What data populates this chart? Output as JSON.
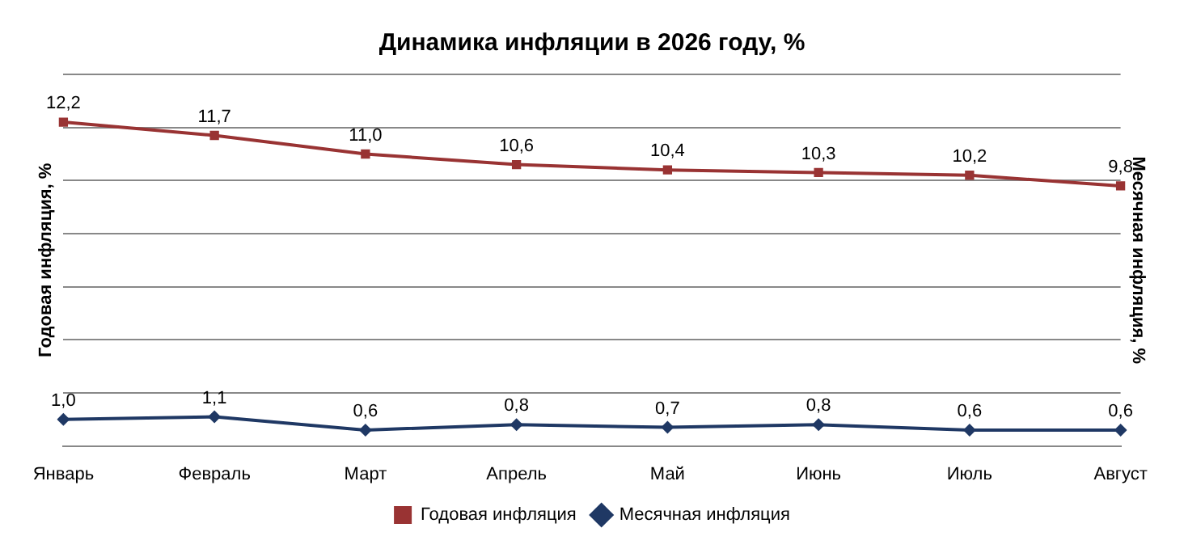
{
  "chart_data": {
    "type": "line",
    "title": "Динамика инфляции в 2026 году, %",
    "ylabel": "Годовая инфляция, %",
    "y2label": "Месячная инфляция, %",
    "categories": [
      "Январь",
      "Февраль",
      "Март",
      "Апрель",
      "Май",
      "Июнь",
      "Июль",
      "Август"
    ],
    "series": [
      {
        "name": "Годовая инфляция",
        "color": "#993333",
        "marker": "square",
        "values": [
          12.2,
          11.7,
          11.0,
          10.6,
          10.4,
          10.3,
          10.2,
          9.8
        ],
        "value_labels": [
          "12,2",
          "11,7",
          "11,0",
          "10,6",
          "10,4",
          "10,3",
          "10,2",
          "9,8"
        ]
      },
      {
        "name": "Месячная инфляция",
        "color": "#1f3864",
        "marker": "diamond",
        "values": [
          1.0,
          1.1,
          0.6,
          0.8,
          0.7,
          0.8,
          0.6,
          0.6
        ],
        "value_labels": [
          "1,0",
          "1,1",
          "0,6",
          "0,8",
          "0,7",
          "0,8",
          "0,6",
          "0,6"
        ]
      }
    ],
    "grid": "y",
    "legend": "bottom",
    "tick_labels": "x",
    "line_style": "solid"
  }
}
